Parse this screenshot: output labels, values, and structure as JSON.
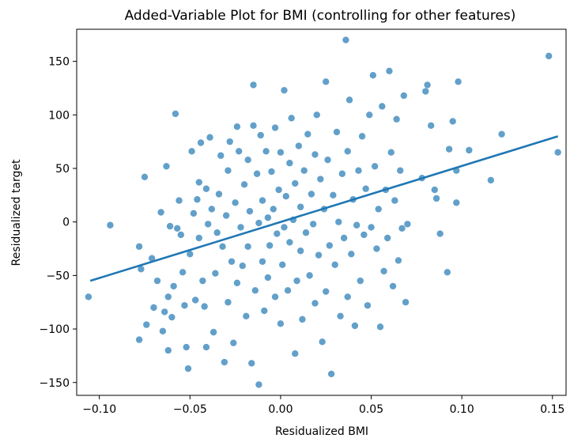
{
  "chart_data": {
    "type": "scatter",
    "title": "Added-Variable Plot for BMI (controlling for other features)",
    "xlabel": "Residualized BMI",
    "ylabel": "Residualized target",
    "xlim": [
      -0.1125,
      0.1575
    ],
    "ylim": [
      -162,
      180
    ],
    "x_ticks": [
      -0.1,
      -0.05,
      0.0,
      0.05,
      0.1,
      0.15
    ],
    "x_tick_labels": [
      "−0.10",
      "−0.05",
      "0.00",
      "0.05",
      "0.10",
      "0.15"
    ],
    "y_ticks": [
      -150,
      -100,
      -50,
      0,
      50,
      100,
      150
    ],
    "y_tick_labels": [
      "−150",
      "−100",
      "−50",
      "0",
      "50",
      "100",
      "150"
    ],
    "grid": false,
    "marker_color": "#1f77b4",
    "marker_opacity": 0.7,
    "line_color": "#1f77b4",
    "fit_line": {
      "x": [
        -0.105,
        0.153
      ],
      "y": [
        -55,
        80
      ]
    },
    "points": [
      [
        -0.106,
        -70
      ],
      [
        -0.094,
        -3
      ],
      [
        -0.078,
        -23
      ],
      [
        -0.077,
        -44
      ],
      [
        -0.075,
        42
      ],
      [
        -0.074,
        -96
      ],
      [
        -0.078,
        -110
      ],
      [
        -0.071,
        -34
      ],
      [
        -0.07,
        -80
      ],
      [
        -0.068,
        -55
      ],
      [
        -0.066,
        9
      ],
      [
        -0.065,
        -102
      ],
      [
        -0.064,
        -84
      ],
      [
        -0.063,
        52
      ],
      [
        -0.062,
        -70
      ],
      [
        -0.062,
        -120
      ],
      [
        -0.061,
        -4
      ],
      [
        -0.06,
        -89
      ],
      [
        -0.059,
        -60
      ],
      [
        -0.058,
        101
      ],
      [
        -0.057,
        -6
      ],
      [
        -0.056,
        20
      ],
      [
        -0.055,
        -12
      ],
      [
        -0.054,
        -47
      ],
      [
        -0.053,
        -78
      ],
      [
        -0.052,
        -117
      ],
      [
        -0.051,
        -137
      ],
      [
        -0.05,
        -30
      ],
      [
        -0.049,
        66
      ],
      [
        -0.048,
        8
      ],
      [
        -0.047,
        -73
      ],
      [
        -0.046,
        21
      ],
      [
        -0.045,
        -15
      ],
      [
        -0.045,
        37
      ],
      [
        -0.044,
        74
      ],
      [
        -0.043,
        -55
      ],
      [
        -0.042,
        -79
      ],
      [
        -0.041,
        -117
      ],
      [
        -0.041,
        31
      ],
      [
        -0.04,
        -2
      ],
      [
        -0.039,
        79
      ],
      [
        -0.038,
        12
      ],
      [
        -0.037,
        -103
      ],
      [
        -0.036,
        -48
      ],
      [
        -0.035,
        -10
      ],
      [
        -0.034,
        26
      ],
      [
        -0.033,
        62
      ],
      [
        -0.032,
        -23
      ],
      [
        -0.031,
        -131
      ],
      [
        -0.03,
        6
      ],
      [
        -0.029,
        48
      ],
      [
        -0.029,
        -75
      ],
      [
        -0.028,
        75
      ],
      [
        -0.027,
        -37
      ],
      [
        -0.026,
        -113
      ],
      [
        -0.025,
        18
      ],
      [
        -0.024,
        89
      ],
      [
        -0.024,
        -57
      ],
      [
        -0.023,
        66
      ],
      [
        -0.022,
        -5
      ],
      [
        -0.021,
        -41
      ],
      [
        -0.02,
        35
      ],
      [
        -0.019,
        -88
      ],
      [
        -0.018,
        58
      ],
      [
        -0.018,
        -23
      ],
      [
        -0.017,
        10
      ],
      [
        -0.016,
        -132
      ],
      [
        -0.015,
        90
      ],
      [
        -0.015,
        128
      ],
      [
        -0.014,
        -64
      ],
      [
        -0.013,
        45
      ],
      [
        -0.012,
        -1
      ],
      [
        -0.012,
        -152
      ],
      [
        -0.011,
        81
      ],
      [
        -0.01,
        -37
      ],
      [
        -0.01,
        20
      ],
      [
        -0.009,
        -83
      ],
      [
        -0.008,
        66
      ],
      [
        -0.007,
        4
      ],
      [
        -0.007,
        -52
      ],
      [
        -0.006,
        -22
      ],
      [
        -0.005,
        47
      ],
      [
        -0.004,
        12
      ],
      [
        -0.003,
        -70
      ],
      [
        -0.003,
        88
      ],
      [
        -0.002,
        -11
      ],
      [
        -0.001,
        30
      ],
      [
        0.0,
        -95
      ],
      [
        0.0,
        65
      ],
      [
        0.001,
        -40
      ],
      [
        0.002,
        123
      ],
      [
        0.002,
        -5
      ],
      [
        0.003,
        24
      ],
      [
        0.004,
        -64
      ],
      [
        0.005,
        55
      ],
      [
        0.005,
        -19
      ],
      [
        0.006,
        97
      ],
      [
        0.007,
        2
      ],
      [
        0.008,
        -123
      ],
      [
        0.008,
        36
      ],
      [
        0.009,
        -55
      ],
      [
        0.01,
        71
      ],
      [
        0.011,
        -27
      ],
      [
        0.011,
        14
      ],
      [
        0.012,
        -91
      ],
      [
        0.013,
        48
      ],
      [
        0.014,
        -10
      ],
      [
        0.015,
        82
      ],
      [
        0.016,
        -50
      ],
      [
        0.017,
        26
      ],
      [
        0.018,
        -2
      ],
      [
        0.019,
        63
      ],
      [
        0.019,
        -76
      ],
      [
        0.02,
        100
      ],
      [
        0.021,
        -31
      ],
      [
        0.022,
        40
      ],
      [
        0.023,
        -112
      ],
      [
        0.024,
        12
      ],
      [
        0.025,
        -65
      ],
      [
        0.025,
        131
      ],
      [
        0.026,
        58
      ],
      [
        0.027,
        -22
      ],
      [
        0.028,
        -142
      ],
      [
        0.029,
        25
      ],
      [
        0.03,
        -40
      ],
      [
        0.031,
        84
      ],
      [
        0.032,
        0
      ],
      [
        0.033,
        -88
      ],
      [
        0.034,
        45
      ],
      [
        0.035,
        -15
      ],
      [
        0.036,
        170
      ],
      [
        0.037,
        -70
      ],
      [
        0.037,
        66
      ],
      [
        0.038,
        114
      ],
      [
        0.039,
        -30
      ],
      [
        0.04,
        21
      ],
      [
        0.041,
        -97
      ],
      [
        0.042,
        -3
      ],
      [
        0.043,
        48
      ],
      [
        0.044,
        -55
      ],
      [
        0.045,
        80
      ],
      [
        0.046,
        -12
      ],
      [
        0.047,
        31
      ],
      [
        0.048,
        -78
      ],
      [
        0.049,
        100
      ],
      [
        0.05,
        -5
      ],
      [
        0.051,
        137
      ],
      [
        0.052,
        52
      ],
      [
        0.053,
        -25
      ],
      [
        0.054,
        12
      ],
      [
        0.055,
        -98
      ],
      [
        0.056,
        108
      ],
      [
        0.057,
        -46
      ],
      [
        0.058,
        30
      ],
      [
        0.059,
        -15
      ],
      [
        0.06,
        141
      ],
      [
        0.061,
        65
      ],
      [
        0.062,
        -60
      ],
      [
        0.063,
        20
      ],
      [
        0.064,
        96
      ],
      [
        0.065,
        -36
      ],
      [
        0.066,
        48
      ],
      [
        0.067,
        -6
      ],
      [
        0.068,
        118
      ],
      [
        0.069,
        -75
      ],
      [
        0.07,
        -2
      ],
      [
        0.078,
        41
      ],
      [
        0.08,
        122
      ],
      [
        0.081,
        128
      ],
      [
        0.083,
        90
      ],
      [
        0.085,
        30
      ],
      [
        0.086,
        22
      ],
      [
        0.088,
        -11
      ],
      [
        0.092,
        -47
      ],
      [
        0.093,
        68
      ],
      [
        0.095,
        94
      ],
      [
        0.097,
        48
      ],
      [
        0.097,
        18
      ],
      [
        0.098,
        131
      ],
      [
        0.104,
        67
      ],
      [
        0.116,
        39
      ],
      [
        0.122,
        82
      ],
      [
        0.148,
        155
      ],
      [
        0.153,
        65
      ]
    ]
  }
}
